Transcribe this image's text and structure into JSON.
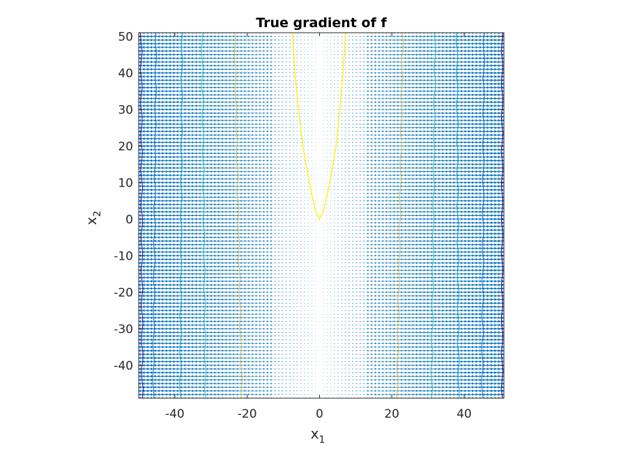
{
  "chart_data": {
    "type": "quiver",
    "title": "True gradient of f",
    "xlabel": {
      "base": "x",
      "sub": "1"
    },
    "ylabel": {
      "base": "x",
      "sub": "2"
    },
    "xlim": [
      -50,
      51
    ],
    "ylim": [
      -49,
      51
    ],
    "x_ticks": [
      -40,
      -20,
      0,
      20,
      40
    ],
    "y_ticks": [
      -40,
      -30,
      -20,
      -10,
      0,
      10,
      20,
      30,
      40,
      50
    ],
    "x_tick_labels": [
      "-40",
      "-20",
      "0",
      "20",
      "40"
    ],
    "y_tick_labels": [
      "-40",
      "-30",
      "-20",
      "-10",
      "0",
      "10",
      "20",
      "30",
      "40",
      "50"
    ],
    "grid": false,
    "box": true,
    "quiver": {
      "x_range": [
        -50,
        50
      ],
      "y_range": [
        -49,
        51
      ],
      "step": 1,
      "direction": "horizontal",
      "color": "#0072BD"
    },
    "contours": [
      {
        "level_index": 0,
        "color": "#3B0F9A",
        "x_at_bottom": -49.0,
        "x_at_top": -49.3
      },
      {
        "level_index": 1,
        "color": "#2B6FCF",
        "x_at_bottom": -46.0,
        "x_at_top": -45.2
      },
      {
        "level_index": 2,
        "color": "#1F9FD3",
        "x_at_bottom": -38.5,
        "x_at_top": -38.0
      },
      {
        "level_index": 3,
        "color": "#3CC0C0",
        "x_at_bottom": -31.5,
        "x_at_top": -32.5
      },
      {
        "level_index": 4,
        "color": "#D9C24A",
        "x_at_bottom": -21.5,
        "x_at_top": -23.5
      },
      {
        "level_index": 5,
        "color": "#D9C24A",
        "x_at_bottom": 21.5,
        "x_at_top": 23.0
      },
      {
        "level_index": 6,
        "color": "#3CC0C0",
        "x_at_bottom": 31.0,
        "x_at_top": 32.0
      },
      {
        "level_index": 7,
        "color": "#1F9FD3",
        "x_at_bottom": 38.5,
        "x_at_top": 38.0
      },
      {
        "level_index": 8,
        "color": "#2B6FCF",
        "x_at_bottom": 45.0,
        "x_at_top": 45.5
      },
      {
        "level_index": 9,
        "color": "#3B0F9A",
        "x_at_bottom": 50.5,
        "x_at_top": 50.5
      }
    ],
    "valley_curve": {
      "color": "#FFF200",
      "points": [
        [
          -7.5,
          51
        ],
        [
          -6.8,
          40
        ],
        [
          -5.8,
          30
        ],
        [
          -4.6,
          20
        ],
        [
          -3.4,
          13
        ],
        [
          -2.2,
          7
        ],
        [
          -1.0,
          2
        ],
        [
          0,
          0
        ],
        [
          1.0,
          2
        ],
        [
          2.2,
          7
        ],
        [
          3.4,
          13
        ],
        [
          4.6,
          20
        ],
        [
          5.6,
          30
        ],
        [
          6.5,
          40
        ],
        [
          7.2,
          51
        ]
      ]
    },
    "colors": {
      "quiver": "#0072BD",
      "axes": "#262626",
      "background": "#ffffff"
    }
  }
}
